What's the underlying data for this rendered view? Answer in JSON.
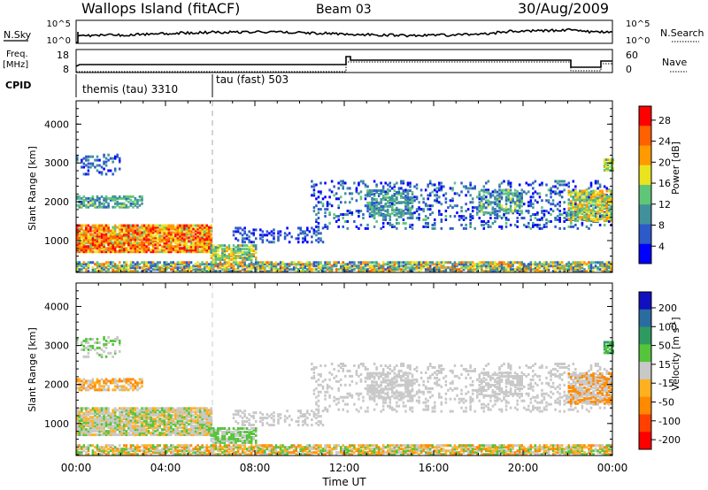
{
  "header": {
    "site": "Wallops Island (fitACF)",
    "beam": "Beam 03",
    "date": "30/Aug/2009"
  },
  "strips": {
    "noise": {
      "left_label": "N.Sky",
      "left_ticks": [
        "10^5",
        "10^0"
      ],
      "right_label": "N.Search",
      "right_ticks": [
        "10^5",
        "10^0"
      ]
    },
    "freq": {
      "left_label_1": "Freq.",
      "left_label_2": "[MHz]",
      "left_ticks": [
        "18",
        "8"
      ],
      "right_label": "Nave",
      "right_ticks": [
        "60",
        "0"
      ]
    },
    "cpid": {
      "label": "CPID",
      "modes": [
        {
          "name": "themis (tau) 3310",
          "start_hour": 0
        },
        {
          "name": "tau (fast) 503",
          "start_hour": 6
        }
      ]
    }
  },
  "chart_data": [
    {
      "type": "heatmap",
      "title": "",
      "quantity": "Power",
      "xlabel": "Time UT",
      "ylabel": "Slant Range [km]",
      "x_ticks": [
        "00:00",
        "04:00",
        "08:00",
        "12:00",
        "16:00",
        "20:00",
        "00:00"
      ],
      "xlim_hours": [
        0,
        24
      ],
      "y_ticks": [
        "1000",
        "2000",
        "3000",
        "4000"
      ],
      "ylim_km": [
        180,
        4600
      ],
      "colorbar": {
        "label": "Power [dB]",
        "ticks": [
          "4",
          "8",
          "12",
          "16",
          "20",
          "24",
          "28"
        ],
        "range": [
          0,
          30
        ],
        "colors": [
          "#0000ff",
          "#2c5ac8",
          "#41919b",
          "#5fc678",
          "#e9e320",
          "#ff9a00",
          "#ff6000",
          "#ff0000"
        ]
      }
    },
    {
      "type": "heatmap",
      "title": "",
      "quantity": "Velocity",
      "xlabel": "Time UT",
      "ylabel": "Slant Range [km]",
      "x_ticks": [
        "00:00",
        "04:00",
        "08:00",
        "12:00",
        "16:00",
        "20:00",
        "00:00"
      ],
      "xlim_hours": [
        0,
        24
      ],
      "y_ticks": [
        "1000",
        "2000",
        "3000",
        "4000"
      ],
      "ylim_km": [
        180,
        4600
      ],
      "colorbar": {
        "label": "Velocity [m s^-1]",
        "ticks": [
          "200",
          "100",
          "50",
          "15",
          "-15",
          "-50",
          "-100",
          "-200"
        ],
        "colors": [
          "#1010c0",
          "#2a6ca0",
          "#2f9a60",
          "#55c43a",
          "#c8c8c8",
          "#ffb020",
          "#ff8a00",
          "#ff4000",
          "#ff0000"
        ]
      }
    }
  ],
  "xaxis": {
    "label": "Time UT"
  }
}
